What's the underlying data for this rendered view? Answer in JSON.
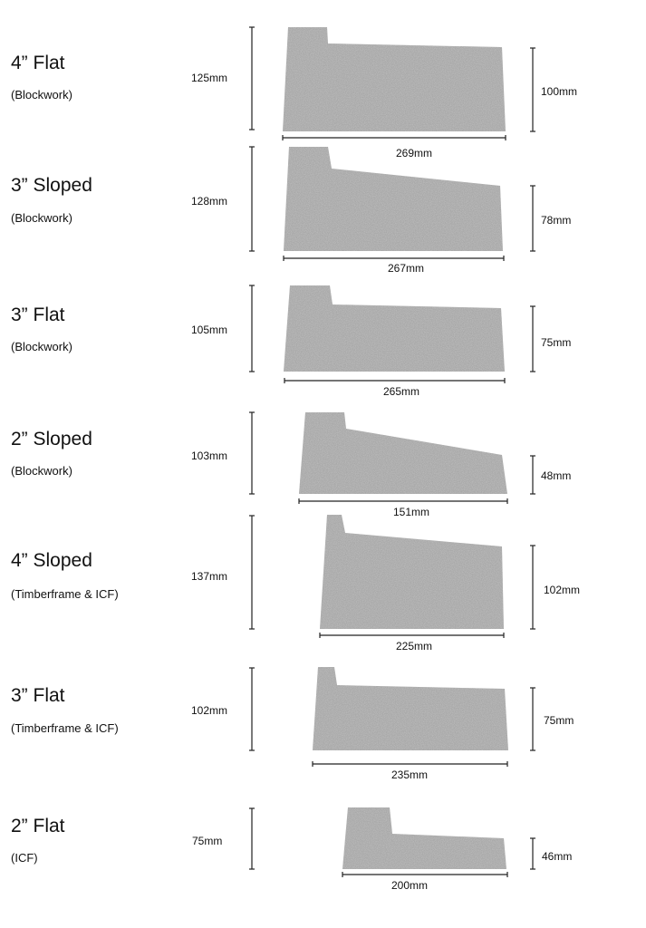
{
  "colors": {
    "block": "#a8a8a8",
    "block_speckle_dark": "#8e8e8e",
    "block_speckle_light": "#c4c4c4",
    "dim_line": "#222222"
  },
  "rows": [
    {
      "title": "4” Flat",
      "subtitle": "(Blockwork)",
      "left_height": "125mm",
      "right_height": "100mm",
      "width": "269mm"
    },
    {
      "title": "3” Sloped",
      "subtitle": "(Blockwork)",
      "left_height": "128mm",
      "right_height": "78mm",
      "width": "267mm"
    },
    {
      "title": "3” Flat",
      "subtitle": "(Blockwork)",
      "left_height": "105mm",
      "right_height": "75mm",
      "width": "265mm"
    },
    {
      "title": "2” Sloped",
      "subtitle": "(Blockwork)",
      "left_height": "103mm",
      "right_height": "48mm",
      "width": "151mm"
    },
    {
      "title": "4” Sloped",
      "subtitle": "(Timberframe & ICF)",
      "left_height": "137mm",
      "right_height": "102mm",
      "width": "225mm"
    },
    {
      "title": "3” Flat",
      "subtitle": "(Timberframe & ICF)",
      "left_height": "102mm",
      "right_height": "75mm",
      "width": "235mm"
    },
    {
      "title": "2” Flat",
      "subtitle": "(ICF)",
      "left_height": "75mm",
      "right_height": "46mm",
      "width": "200mm"
    }
  ]
}
